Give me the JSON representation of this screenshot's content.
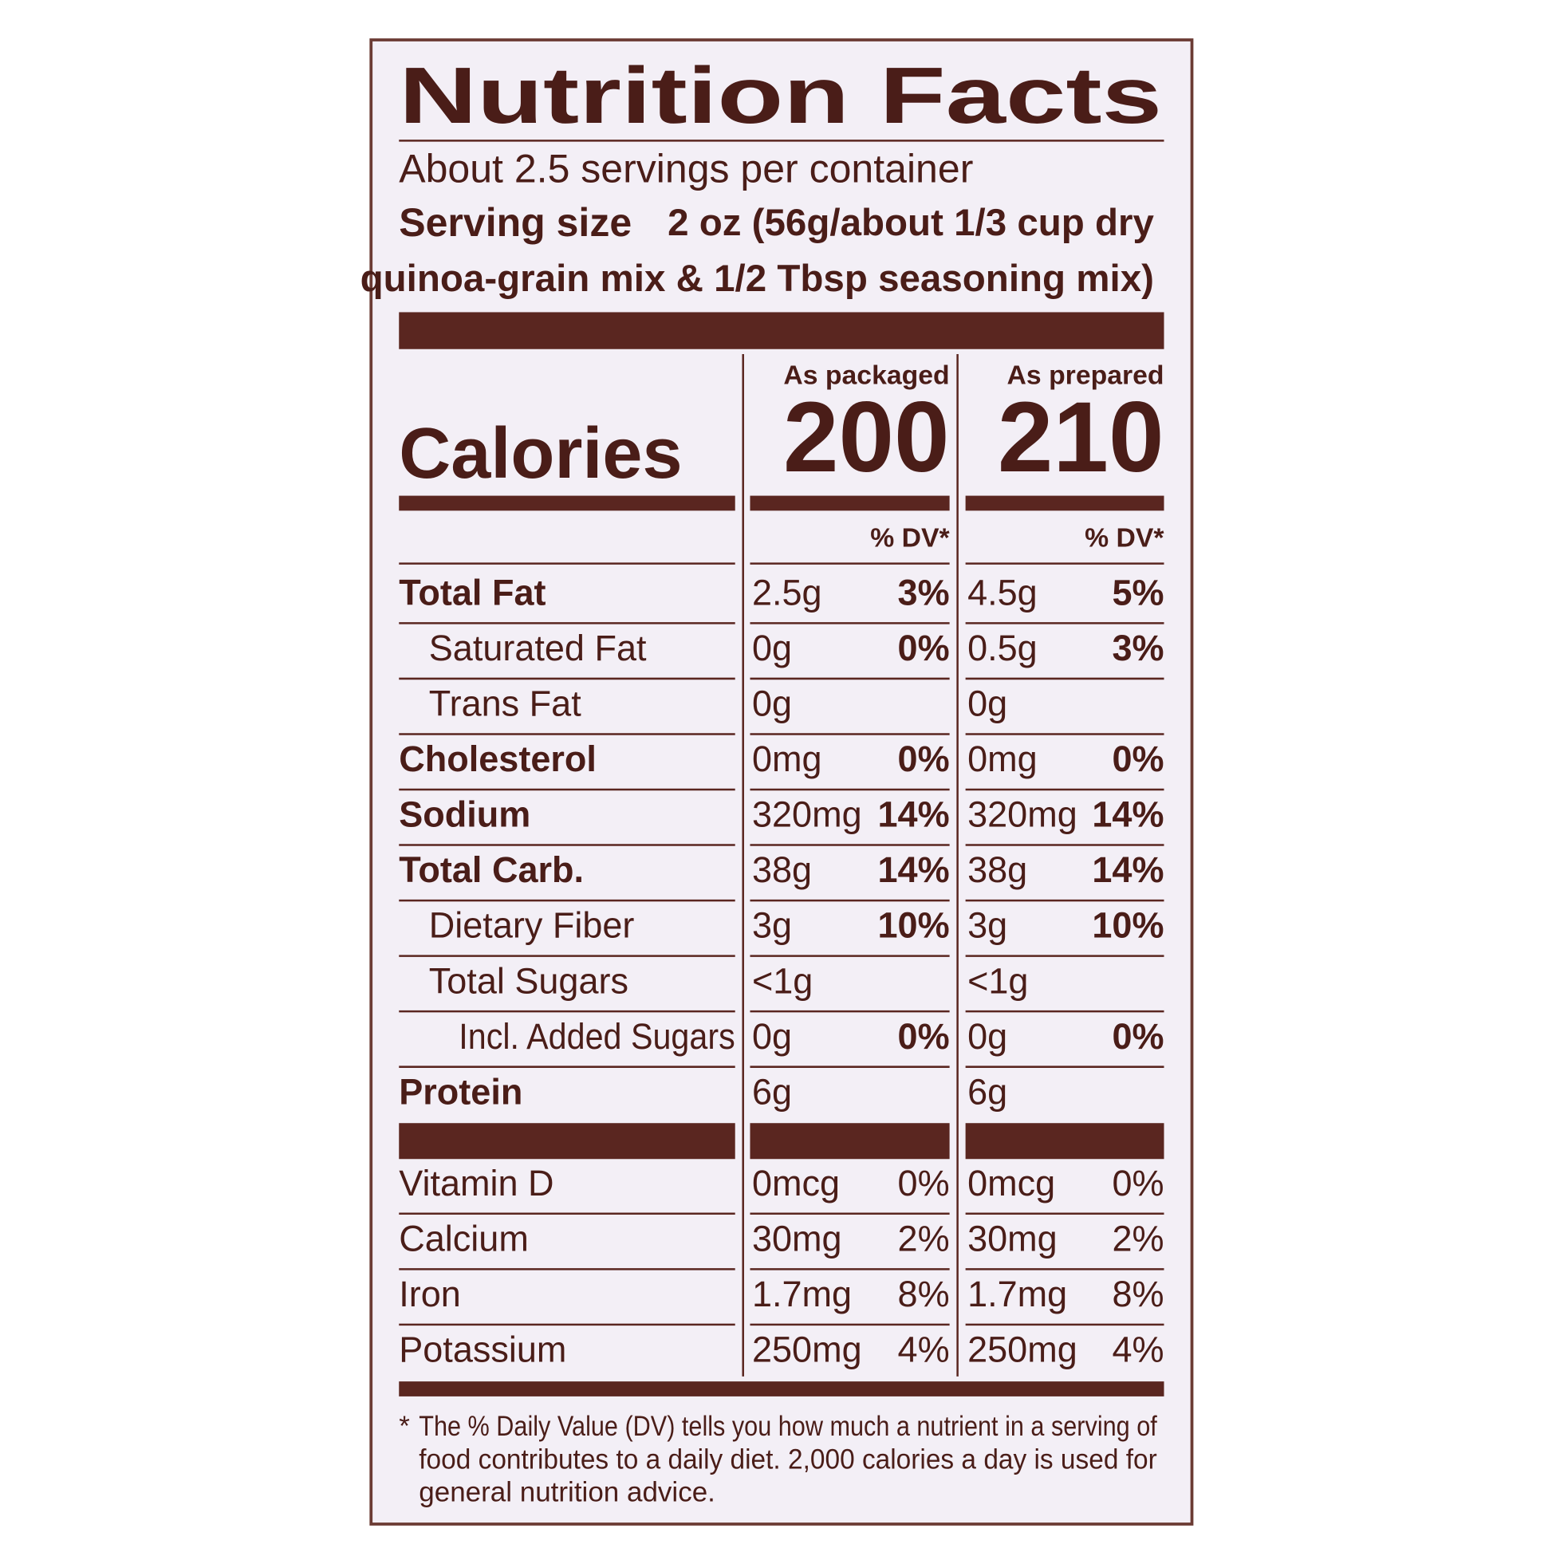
{
  "title": "Nutrition Facts",
  "servings": "About 2.5 servings per container",
  "serving_size": {
    "label": "Serving size",
    "lines": [
      "2 oz (56g/about 1/3 cup dry",
      "quinoa-grain mix & 1/2 Tbsp seasoning mix)"
    ]
  },
  "calories_label": "Calories",
  "columns": [
    {
      "heading": "As packaged",
      "calories": 200,
      "dv_heading": "% DV*"
    },
    {
      "heading": "As prepared",
      "calories": 210,
      "dv_heading": "% DV*"
    }
  ],
  "nutrients": [
    {
      "name": "Total Fat",
      "packaged": {
        "amount": "2.5g",
        "dv": "3%"
      },
      "prepared": {
        "amount": "4.5g",
        "dv": "5%"
      },
      "sub": [
        {
          "name": "Saturated Fat",
          "packaged": {
            "amount": "0g",
            "dv": "0%"
          },
          "prepared": {
            "amount": "0.5g",
            "dv": "3%"
          }
        },
        {
          "name": "Trans Fat",
          "packaged": {
            "amount": "0g"
          },
          "prepared": {
            "amount": "0g"
          }
        }
      ]
    },
    {
      "name": "Cholesterol",
      "packaged": {
        "amount": "0mg",
        "dv": "0%"
      },
      "prepared": {
        "amount": "0mg",
        "dv": "0%"
      }
    },
    {
      "name": "Sodium",
      "packaged": {
        "amount": "320mg",
        "dv": "14%"
      },
      "prepared": {
        "amount": "320mg",
        "dv": "14%"
      }
    },
    {
      "name": "Total Carb.",
      "packaged": {
        "amount": "38g",
        "dv": "14%"
      },
      "prepared": {
        "amount": "38g",
        "dv": "14%"
      },
      "sub": [
        {
          "name": "Dietary Fiber",
          "packaged": {
            "amount": "3g",
            "dv": "10%"
          },
          "prepared": {
            "amount": "3g",
            "dv": "10%"
          }
        },
        {
          "name": "Total Sugars",
          "packaged": {
            "amount": "<1g"
          },
          "prepared": {
            "amount": "<1g"
          },
          "sub": [
            {
              "name": "Incl. Added Sugars",
              "packaged": {
                "amount": "0g",
                "dv": "0%"
              },
              "prepared": {
                "amount": "0g",
                "dv": "0%"
              }
            }
          ]
        }
      ]
    },
    {
      "name": "Protein",
      "packaged": {
        "amount": "6g"
      },
      "prepared": {
        "amount": "6g"
      }
    }
  ],
  "vitamins": [
    {
      "name": "Vitamin D",
      "packaged": {
        "amount": "0mcg",
        "dv": "0%"
      },
      "prepared": {
        "amount": "0mcg",
        "dv": "0%"
      }
    },
    {
      "name": "Calcium",
      "packaged": {
        "amount": "30mg",
        "dv": "2%"
      },
      "prepared": {
        "amount": "30mg",
        "dv": "2%"
      }
    },
    {
      "name": "Iron",
      "packaged": {
        "amount": "1.7mg",
        "dv": "8%"
      },
      "prepared": {
        "amount": "1.7mg",
        "dv": "8%"
      }
    },
    {
      "name": "Potassium",
      "packaged": {
        "amount": "250mg",
        "dv": "4%"
      },
      "prepared": {
        "amount": "250mg",
        "dv": "4%"
      }
    }
  ],
  "footnote": {
    "marker": "*",
    "lines": [
      "The % Daily Value (DV) tells you how much a nutrient in a serving of",
      "food contributes to a daily diet. 2,000 calories a day is used for",
      "general nutrition advice."
    ]
  }
}
